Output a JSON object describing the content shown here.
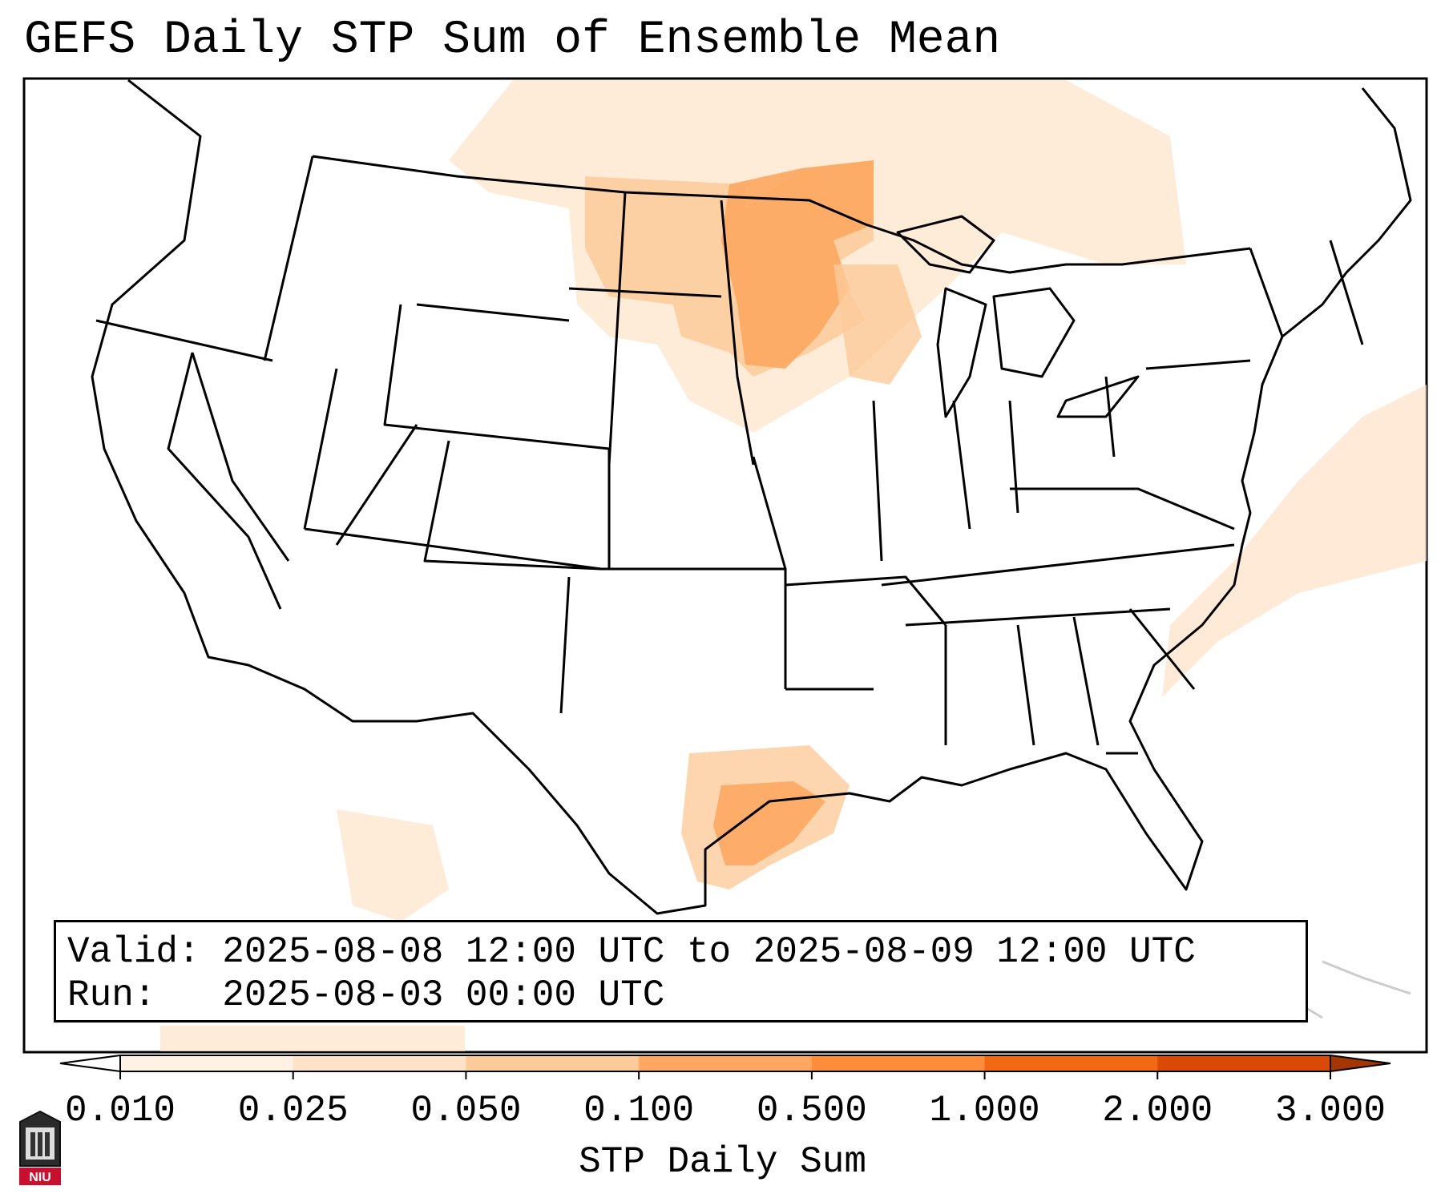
{
  "title": "GEFS Daily STP Sum of Ensemble Mean",
  "info": {
    "valid_label": "Valid:",
    "valid_value": "2025-08-08 12:00 UTC to 2025-08-09 12:00 UTC",
    "run_label": "Run:",
    "run_value": "2025-08-03 00:00 UTC"
  },
  "colorbar": {
    "label": "STP Daily Sum",
    "ticks": [
      "0.010",
      "0.025",
      "0.050",
      "0.100",
      "0.500",
      "1.000",
      "2.000",
      "3.000"
    ],
    "colors": [
      "#fff1e4",
      "#fee3c8",
      "#fdcb9a",
      "#fda762",
      "#fd8c3b",
      "#f16913",
      "#d84a05"
    ],
    "extend_under_color": "#ffffff",
    "extend_over_color": "#a33603"
  },
  "highlight_regions": [
    {
      "name": "Upper Midwest / Minnesota",
      "level": "0.100-0.500"
    },
    {
      "name": "Dakotas",
      "level": "0.050-0.100"
    },
    {
      "name": "Texas Gulf Coast",
      "level": "0.100-0.500"
    },
    {
      "name": "Atlantic offshore",
      "level": "0.010-0.050"
    }
  ],
  "logo": {
    "text": "NIU"
  }
}
